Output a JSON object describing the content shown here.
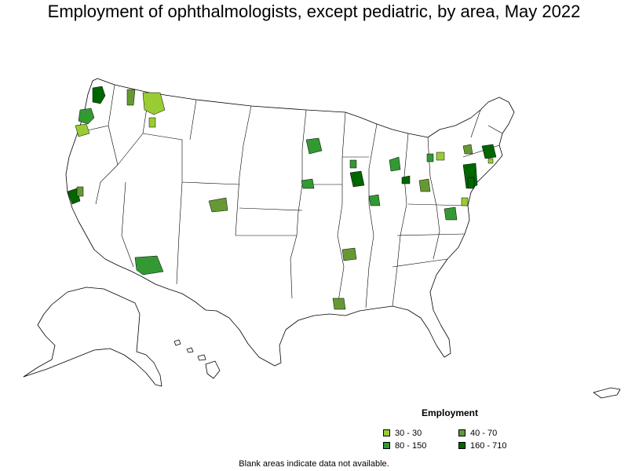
{
  "title": "Employment of ophthalmologists, except pediatric, by area, May 2022",
  "legend": {
    "title": "Employment",
    "items": [
      {
        "label": "30 - 30",
        "color": "#99cc33"
      },
      {
        "label": "40 - 70",
        "color": "#669933"
      },
      {
        "label": "80 - 150",
        "color": "#339933"
      },
      {
        "label": "160 - 710",
        "color": "#006600"
      }
    ]
  },
  "footnote": "Blank areas indicate data not available.",
  "colors": {
    "background": "#ffffff",
    "boundary": "#000000",
    "class_30_30": "#99cc33",
    "class_40_70": "#669933",
    "class_80_150": "#339933",
    "class_160_710": "#006600"
  }
}
